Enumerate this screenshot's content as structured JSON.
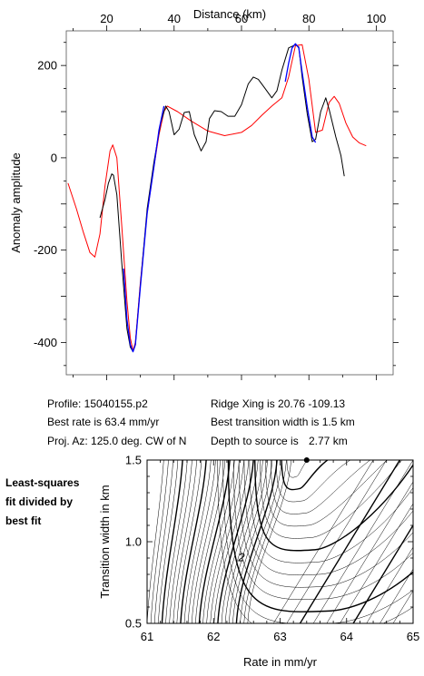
{
  "chart_data": [
    {
      "type": "line",
      "title": "",
      "xlabel": "Distance (km)",
      "ylabel": "Anomaly amplitude",
      "xlim": [
        8,
        105
      ],
      "ylim": [
        -470,
        275
      ],
      "x_ticks": [
        20,
        40,
        60,
        80,
        100
      ],
      "y_ticks": [
        -400,
        -200,
        0,
        200
      ],
      "x_axis_position": "top",
      "grid": false,
      "series": [
        {
          "color": "#ff0000",
          "x": [
            8.5,
            11,
            13,
            15,
            16.5,
            18,
            19.5,
            21,
            21.8,
            23,
            24.5,
            26,
            27,
            27.8,
            28.5,
            30,
            32,
            34,
            35.5,
            37,
            38,
            41,
            45,
            50,
            55,
            60,
            63,
            66,
            69,
            72,
            74,
            76,
            78,
            80,
            82,
            84,
            86,
            87.5,
            89,
            91,
            93,
            95,
            97
          ],
          "y": [
            -55,
            -110,
            -160,
            -205,
            -215,
            -165,
            -60,
            15,
            28,
            0,
            -150,
            -310,
            -390,
            -418,
            -400,
            -270,
            -120,
            -20,
            50,
            100,
            112,
            100,
            80,
            58,
            48,
            55,
            70,
            92,
            112,
            130,
            175,
            243,
            245,
            170,
            55,
            60,
            120,
            133,
            118,
            75,
            45,
            32,
            26
          ]
        },
        {
          "color": "#000000",
          "x": [
            18,
            19.5,
            20.5,
            21.5,
            22,
            23,
            24.5,
            26,
            27,
            27.8,
            28.5,
            30,
            32,
            34,
            36,
            37.5,
            38.5,
            40,
            41.5,
            43,
            44.5,
            46,
            48,
            49.5,
            50.5,
            52,
            54,
            56,
            58,
            60,
            62,
            63.5,
            65,
            67,
            69,
            70.5,
            72,
            74,
            76,
            77,
            78,
            79.5,
            81,
            82,
            83.5,
            85,
            86,
            87,
            88,
            89.5,
            90.5
          ],
          "y": [
            -130,
            -90,
            -55,
            -35,
            -38,
            -80,
            -230,
            -370,
            -410,
            -420,
            -405,
            -275,
            -110,
            -10,
            75,
            112,
            100,
            50,
            62,
            98,
            100,
            50,
            15,
            35,
            85,
            102,
            100,
            90,
            90,
            115,
            160,
            175,
            170,
            150,
            130,
            145,
            190,
            238,
            245,
            240,
            175,
            95,
            35,
            40,
            100,
            130,
            105,
            75,
            45,
            5,
            -40
          ]
        },
        {
          "color": "#0000ff",
          "x": [
            25,
            26,
            27,
            27.8,
            28.5,
            30,
            32,
            34,
            35.5,
            37
          ],
          "y": [
            -240,
            -350,
            -405,
            -420,
            -405,
            -280,
            -120,
            -20,
            60,
            112
          ]
        },
        {
          "color": "#0000ff",
          "x": [
            73,
            74,
            75,
            76,
            77,
            78,
            79.5,
            81,
            82
          ],
          "y": [
            165,
            205,
            238,
            247,
            238,
            185,
            110,
            45,
            33
          ]
        }
      ]
    },
    {
      "type": "contour",
      "title": "",
      "xlabel": "Rate in mm/yr",
      "ylabel": "Transition width in km",
      "xlim": [
        61,
        65
      ],
      "ylim": [
        0.5,
        1.5
      ],
      "x_ticks": [
        61,
        62,
        63,
        64,
        65
      ],
      "y_ticks": [
        0.5,
        1.0,
        1.5
      ],
      "grid": false,
      "best_fit": {
        "rate": 63.4,
        "width": 1.5
      },
      "contour_labels": [
        "2"
      ]
    }
  ],
  "info": {
    "profile": "Profile: 15040155.p2",
    "best_rate": "Best rate is 63.4 mm/yr",
    "proj_az": "Proj. Az: 125.0 deg. CW of N",
    "ridge_xing": "Ridge Xing is 20.76 -109.13",
    "best_transition": "Best transition width is 1.5 km",
    "depth_label": "Depth to source is",
    "depth_value": "2.77 km"
  },
  "note": {
    "line1": "Least-squares",
    "line2": "fit divided by",
    "line3": "best fit"
  }
}
